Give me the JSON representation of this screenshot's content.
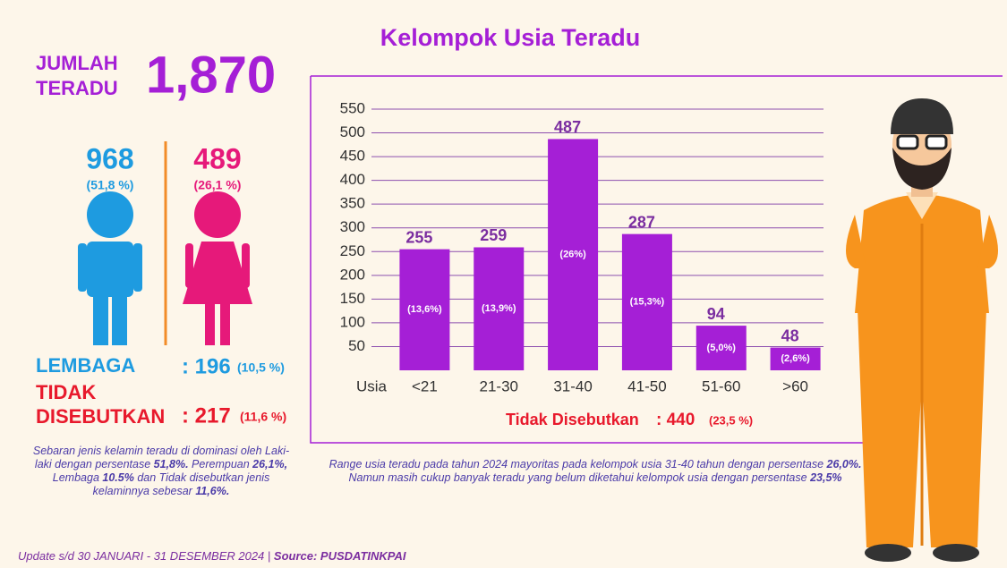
{
  "header": {
    "label_lines": [
      "JUMLAH",
      "TERADU"
    ],
    "total": "1,870"
  },
  "gender": {
    "male": {
      "count": "968",
      "share": "(51,8 %)"
    },
    "female": {
      "count": "489",
      "share": "(26,1 %)"
    }
  },
  "lembaga": {
    "label": "LEMBAGA",
    "value": ": 196",
    "share": "(10,5 %)"
  },
  "tidak_disebutkan": {
    "label_lines": [
      "TIDAK",
      "DISEBUTKAN"
    ],
    "value": ": 217",
    "share": "(11,6 %)"
  },
  "gender_note": {
    "runs": [
      {
        "text": "Sebaran jenis kelamin teradu di dominasi oleh Laki-laki dengan persentase ",
        "bold": false
      },
      {
        "text": "51,8%.",
        "bold": true
      },
      {
        "text": " Perempuan ",
        "bold": false
      },
      {
        "text": "26,1%,",
        "bold": true
      },
      {
        "text": " Lembaga ",
        "bold": false
      },
      {
        "text": "10.5%",
        "bold": true
      },
      {
        "text": " dan Tidak disebutkan jenis kelaminnya sebesar ",
        "bold": false
      },
      {
        "text": "11,6%.",
        "bold": true
      }
    ]
  },
  "chart_data": {
    "type": "bar",
    "title": "Kelompok Usia Teradu",
    "x_label": "Usia",
    "categories": [
      "<21",
      "21-30",
      "31-40",
      "41-50",
      "51-60",
      ">60"
    ],
    "values": [
      255,
      259,
      487,
      287,
      94,
      48
    ],
    "share_labels": [
      "(13,6%)",
      "(13,9%)",
      "(26%)",
      "(15,3%)",
      "(5,0%)",
      "(2,6%)"
    ],
    "color": "#a51fd6",
    "ylim": [
      0,
      550
    ],
    "yticks": [
      50,
      100,
      150,
      200,
      250,
      300,
      350,
      400,
      450,
      500,
      550
    ],
    "grid": true,
    "unknown": {
      "label": "Tidak Disebutkan",
      "value": ": 440",
      "share": "(23,5 %)"
    }
  },
  "chart_note": {
    "runs": [
      {
        "text": "Range usia teradu pada tahun 2024 mayoritas pada kelompok usia 31-40 tahun dengan persentase ",
        "bold": false
      },
      {
        "text": "26,0%.",
        "bold": true
      },
      {
        "text": " Namun masih cukup banyak teradu yang belum diketahui kelompok usia dengan persentase ",
        "bold": false
      },
      {
        "text": "23,5%",
        "bold": true
      }
    ]
  },
  "footer": {
    "runs": [
      {
        "text": "Update s/d 30 JANUARI - 31 DESEMBER 2024 | ",
        "bold": false
      },
      {
        "text": "Source: PUSDATINKPAI",
        "bold": true
      }
    ]
  }
}
